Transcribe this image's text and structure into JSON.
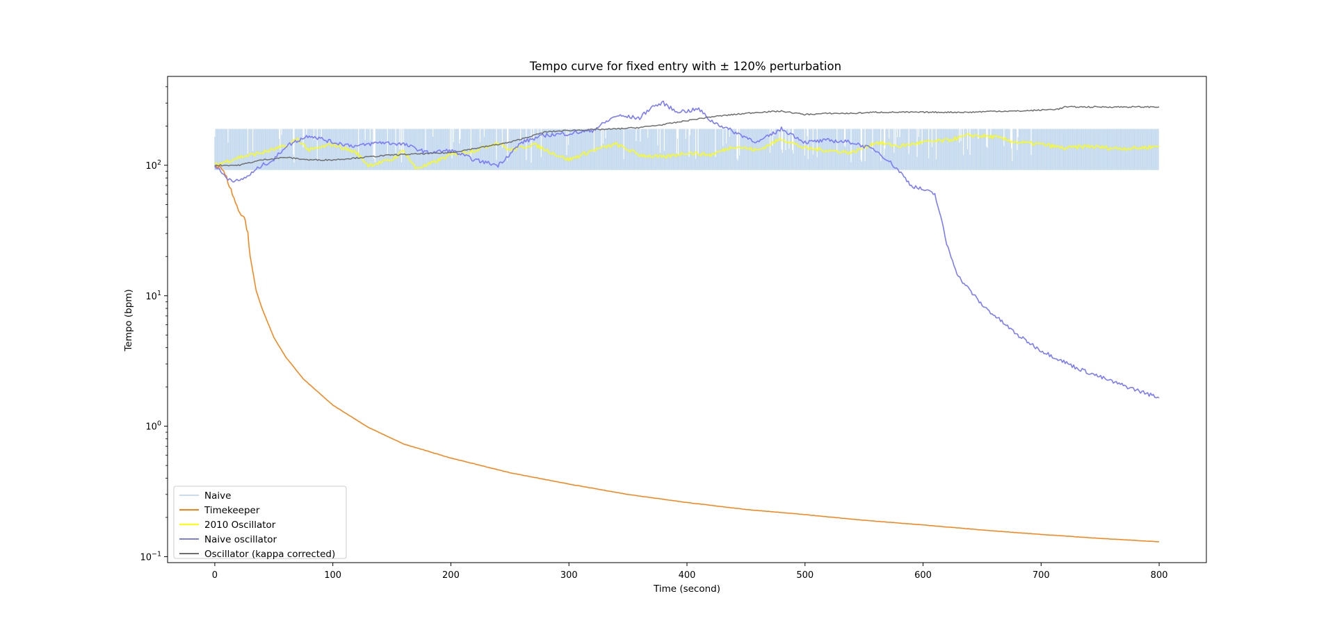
{
  "chart_data": {
    "type": "line",
    "title": "Tempo curve for fixed entry with ± 120% perturbation",
    "xlabel": "Time (second)",
    "ylabel": "Tempo (bpm)",
    "xlim": [
      -40,
      840
    ],
    "ylim": [
      0.09,
      480
    ],
    "yscale": "log",
    "grid": false,
    "legend_position": "lower-left",
    "x_ticks": [
      0,
      100,
      200,
      300,
      400,
      500,
      600,
      700,
      800
    ],
    "y_ticks": [
      {
        "value": 0.1,
        "base": "10",
        "exp": "−1"
      },
      {
        "value": 1,
        "base": "10",
        "exp": "0"
      },
      {
        "value": 10,
        "base": "10",
        "exp": "1"
      },
      {
        "value": 100,
        "base": "10",
        "exp": "2"
      }
    ],
    "series": [
      {
        "name": "Naive",
        "color": "#c6dbef",
        "style": "band",
        "x_end": 800,
        "lower": 92,
        "upper": 190,
        "noise_end": 700
      },
      {
        "name": "Timekeeper",
        "color": "#ff7f0e",
        "points": [
          [
            0,
            100
          ],
          [
            5,
            98
          ],
          [
            10,
            80
          ],
          [
            15,
            60
          ],
          [
            20,
            45
          ],
          [
            25,
            40
          ],
          [
            28,
            30
          ],
          [
            30,
            20
          ],
          [
            35,
            11
          ],
          [
            40,
            8
          ],
          [
            50,
            4.8
          ],
          [
            60,
            3.4
          ],
          [
            75,
            2.3
          ],
          [
            100,
            1.45
          ],
          [
            130,
            0.98
          ],
          [
            160,
            0.73
          ],
          [
            200,
            0.57
          ],
          [
            250,
            0.44
          ],
          [
            300,
            0.36
          ],
          [
            350,
            0.3
          ],
          [
            400,
            0.26
          ],
          [
            450,
            0.23
          ],
          [
            500,
            0.21
          ],
          [
            550,
            0.19
          ],
          [
            600,
            0.175
          ],
          [
            650,
            0.16
          ],
          [
            700,
            0.148
          ],
          [
            750,
            0.138
          ],
          [
            800,
            0.13
          ]
        ]
      },
      {
        "name": "2010 Oscillator",
        "color": "#ffff00",
        "points": [
          [
            0,
            100
          ],
          [
            20,
            115
          ],
          [
            40,
            125
          ],
          [
            60,
            140
          ],
          [
            70,
            160
          ],
          [
            80,
            130
          ],
          [
            100,
            145
          ],
          [
            120,
            125
          ],
          [
            130,
            100
          ],
          [
            150,
            110
          ],
          [
            160,
            130
          ],
          [
            170,
            95
          ],
          [
            180,
            100
          ],
          [
            200,
            120
          ],
          [
            220,
            130
          ],
          [
            240,
            150
          ],
          [
            250,
            130
          ],
          [
            270,
            145
          ],
          [
            290,
            120
          ],
          [
            300,
            110
          ],
          [
            320,
            130
          ],
          [
            340,
            145
          ],
          [
            360,
            120
          ],
          [
            380,
            115
          ],
          [
            400,
            125
          ],
          [
            420,
            120
          ],
          [
            440,
            140
          ],
          [
            460,
            130
          ],
          [
            480,
            160
          ],
          [
            500,
            135
          ],
          [
            520,
            130
          ],
          [
            540,
            125
          ],
          [
            560,
            150
          ],
          [
            580,
            140
          ],
          [
            600,
            150
          ],
          [
            620,
            155
          ],
          [
            640,
            170
          ],
          [
            660,
            165
          ],
          [
            680,
            150
          ],
          [
            700,
            145
          ],
          [
            720,
            135
          ],
          [
            740,
            140
          ],
          [
            760,
            135
          ],
          [
            780,
            135
          ],
          [
            800,
            140
          ]
        ]
      },
      {
        "name": "Naive oscillator",
        "color": "#7b7bff",
        "points": [
          [
            0,
            100
          ],
          [
            10,
            80
          ],
          [
            20,
            75
          ],
          [
            30,
            85
          ],
          [
            40,
            100
          ],
          [
            50,
            110
          ],
          [
            60,
            140
          ],
          [
            80,
            170
          ],
          [
            100,
            150
          ],
          [
            120,
            140
          ],
          [
            140,
            150
          ],
          [
            160,
            145
          ],
          [
            180,
            125
          ],
          [
            200,
            130
          ],
          [
            220,
            110
          ],
          [
            240,
            100
          ],
          [
            260,
            150
          ],
          [
            280,
            170
          ],
          [
            300,
            175
          ],
          [
            320,
            185
          ],
          [
            340,
            240
          ],
          [
            360,
            230
          ],
          [
            370,
            280
          ],
          [
            380,
            300
          ],
          [
            390,
            260
          ],
          [
            400,
            260
          ],
          [
            410,
            270
          ],
          [
            420,
            220
          ],
          [
            440,
            180
          ],
          [
            460,
            150
          ],
          [
            480,
            190
          ],
          [
            490,
            170
          ],
          [
            500,
            150
          ],
          [
            520,
            155
          ],
          [
            540,
            150
          ],
          [
            550,
            140
          ],
          [
            560,
            130
          ],
          [
            570,
            110
          ],
          [
            580,
            90
          ],
          [
            590,
            70
          ],
          [
            600,
            65
          ],
          [
            610,
            60
          ],
          [
            615,
            40
          ],
          [
            620,
            25
          ],
          [
            630,
            14
          ],
          [
            650,
            8.5
          ],
          [
            680,
            5
          ],
          [
            700,
            3.8
          ],
          [
            730,
            2.8
          ],
          [
            760,
            2.2
          ],
          [
            800,
            1.65
          ]
        ]
      },
      {
        "name": "Oscillator (kappa corrected)",
        "color": "#6e6e6e",
        "points": [
          [
            0,
            100
          ],
          [
            20,
            100
          ],
          [
            40,
            110
          ],
          [
            60,
            115
          ],
          [
            80,
            110
          ],
          [
            100,
            110
          ],
          [
            150,
            120
          ],
          [
            200,
            125
          ],
          [
            250,
            150
          ],
          [
            280,
            180
          ],
          [
            300,
            185
          ],
          [
            340,
            190
          ],
          [
            360,
            195
          ],
          [
            380,
            205
          ],
          [
            400,
            220
          ],
          [
            420,
            235
          ],
          [
            440,
            245
          ],
          [
            460,
            255
          ],
          [
            480,
            260
          ],
          [
            500,
            245
          ],
          [
            520,
            250
          ],
          [
            540,
            250
          ],
          [
            560,
            255
          ],
          [
            580,
            255
          ],
          [
            600,
            255
          ],
          [
            620,
            255
          ],
          [
            640,
            255
          ],
          [
            660,
            260
          ],
          [
            680,
            260
          ],
          [
            700,
            265
          ],
          [
            715,
            270
          ],
          [
            720,
            280
          ],
          [
            800,
            280
          ]
        ]
      }
    ]
  }
}
